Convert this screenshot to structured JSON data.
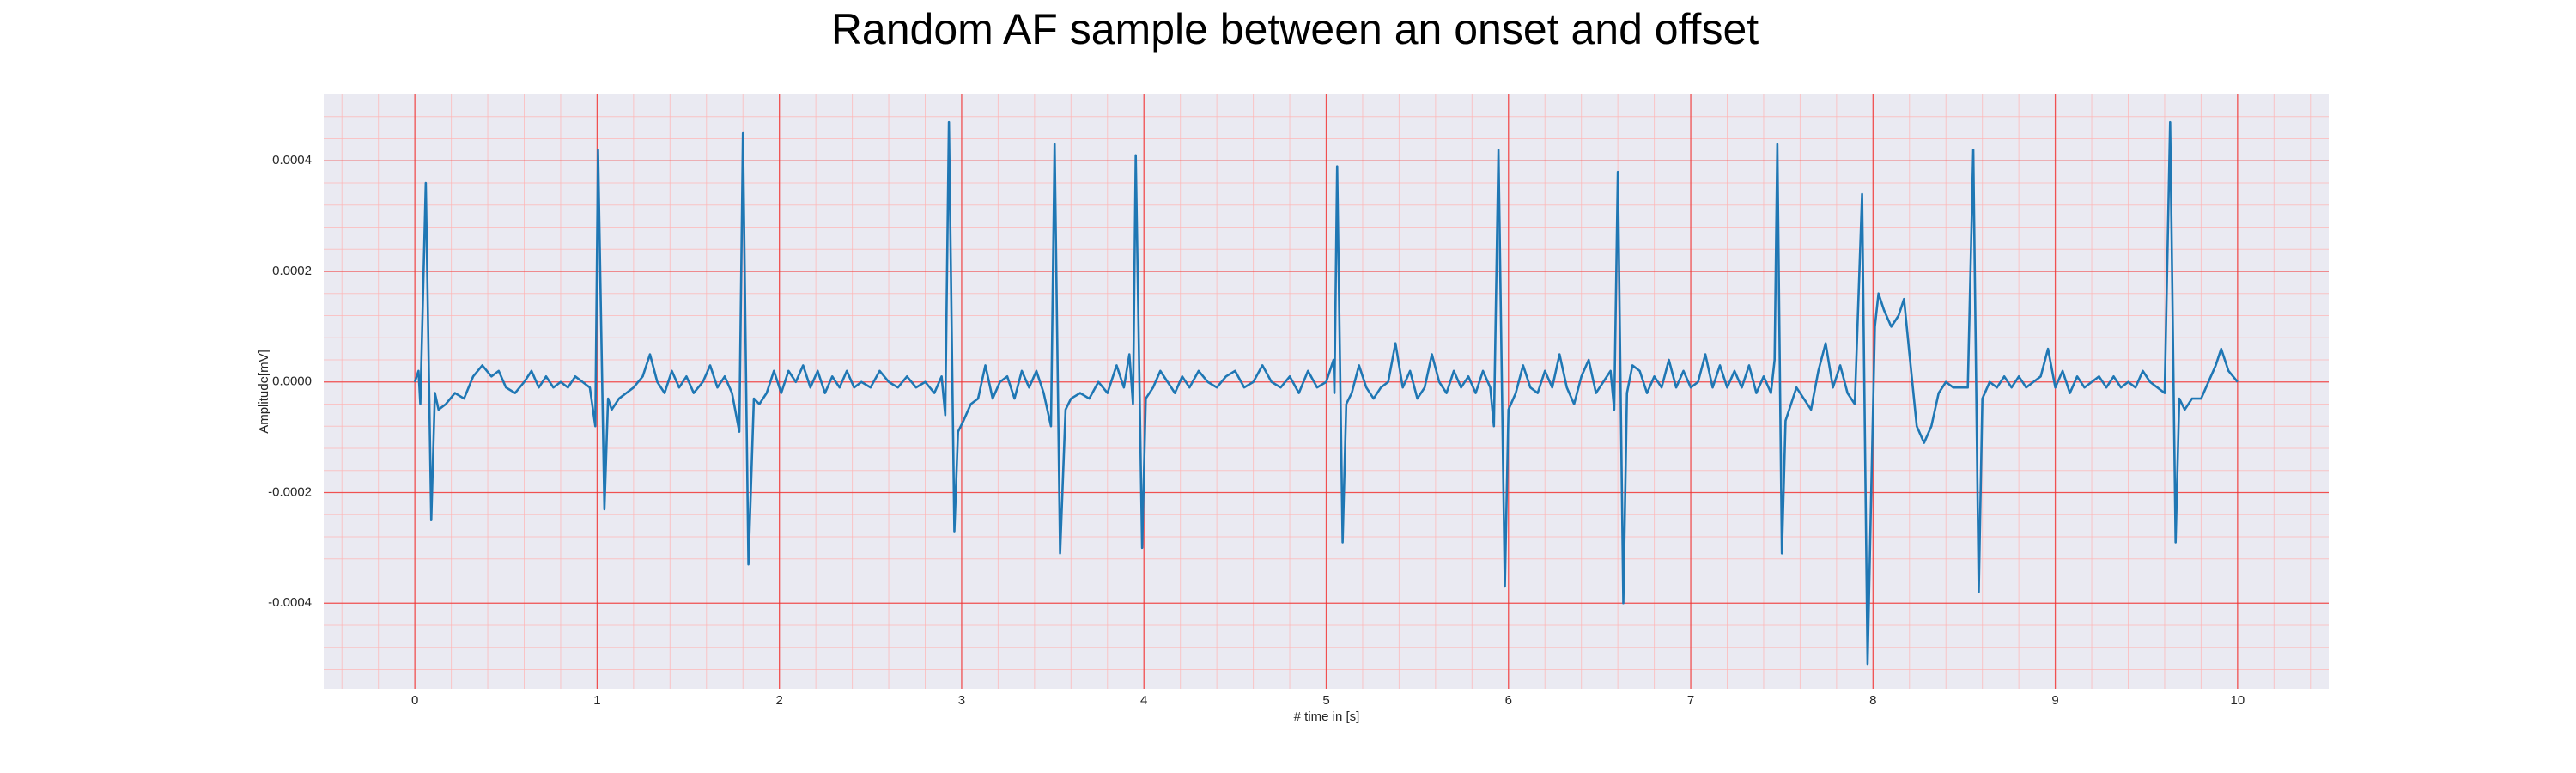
{
  "chart_data": {
    "type": "line",
    "title": "Random AF sample between an onset and offset",
    "x_label": "# time in [s]",
    "y_label": "Amplitude[mV]",
    "color": "#1f77b4",
    "grid": true,
    "minor_grid": true,
    "xlim": [
      -0.5,
      10.5
    ],
    "xticks": [
      0,
      1,
      2,
      3,
      4,
      5,
      6,
      7,
      8,
      9,
      10
    ],
    "ylim": [
      -0.000555,
      0.00052
    ],
    "yticks": [
      -0.0004,
      -0.0002,
      {
        "value": 0,
        "label": "0.0000"
      },
      0.0002,
      0.0004
    ],
    "x": [
      0,
      0.02,
      0.03,
      0.06,
      0.09,
      0.11,
      0.13,
      0.17,
      0.22,
      0.27,
      0.32,
      0.37,
      0.42,
      0.46,
      0.5,
      0.55,
      0.6,
      0.64,
      0.68,
      0.72,
      0.76,
      0.8,
      0.84,
      0.88,
      0.92,
      0.96,
      0.99,
      1.005,
      1.04,
      1.06,
      1.08,
      1.12,
      1.16,
      1.2,
      1.25,
      1.29,
      1.33,
      1.37,
      1.41,
      1.45,
      1.49,
      1.53,
      1.58,
      1.62,
      1.66,
      1.7,
      1.74,
      1.78,
      1.8,
      1.83,
      1.86,
      1.89,
      1.93,
      1.97,
      2.01,
      2.05,
      2.09,
      2.13,
      2.17,
      2.21,
      2.25,
      2.29,
      2.33,
      2.37,
      2.41,
      2.45,
      2.5,
      2.55,
      2.6,
      2.65,
      2.7,
      2.75,
      2.8,
      2.85,
      2.89,
      2.91,
      2.93,
      2.96,
      2.98,
      3.01,
      3.05,
      3.09,
      3.13,
      3.17,
      3.21,
      3.25,
      3.29,
      3.33,
      3.37,
      3.41,
      3.45,
      3.49,
      3.51,
      3.54,
      3.57,
      3.6,
      3.65,
      3.7,
      3.75,
      3.8,
      3.85,
      3.89,
      3.92,
      3.94,
      3.955,
      3.99,
      4.01,
      4.05,
      4.09,
      4.13,
      4.17,
      4.21,
      4.25,
      4.3,
      4.35,
      4.4,
      4.45,
      4.5,
      4.55,
      4.6,
      4.65,
      4.7,
      4.75,
      4.8,
      4.85,
      4.9,
      4.95,
      5,
      5.04,
      5.045,
      5.06,
      5.09,
      5.11,
      5.14,
      5.18,
      5.22,
      5.26,
      5.3,
      5.34,
      5.38,
      5.42,
      5.46,
      5.5,
      5.54,
      5.58,
      5.62,
      5.66,
      5.7,
      5.74,
      5.78,
      5.82,
      5.86,
      5.9,
      5.92,
      5.945,
      5.98,
      6,
      6.04,
      6.08,
      6.12,
      6.16,
      6.2,
      6.24,
      6.28,
      6.32,
      6.36,
      6.4,
      6.44,
      6.48,
      6.52,
      6.56,
      6.58,
      6.6,
      6.63,
      6.65,
      6.68,
      6.72,
      6.76,
      6.8,
      6.84,
      6.88,
      6.92,
      6.96,
      7,
      7.04,
      7.08,
      7.12,
      7.16,
      7.2,
      7.24,
      7.28,
      7.32,
      7.36,
      7.4,
      7.44,
      7.46,
      7.475,
      7.5,
      7.52,
      7.55,
      7.58,
      7.62,
      7.66,
      7.7,
      7.74,
      7.78,
      7.82,
      7.86,
      7.9,
      7.94,
      7.97,
      7.99,
      8.01,
      8.03,
      8.06,
      8.1,
      8.14,
      8.17,
      8.2,
      8.24,
      8.28,
      8.32,
      8.36,
      8.4,
      8.44,
      8.48,
      8.52,
      8.55,
      8.58,
      8.6,
      8.64,
      8.68,
      8.72,
      8.76,
      8.8,
      8.84,
      8.88,
      8.92,
      8.96,
      9,
      9.04,
      9.08,
      9.12,
      9.16,
      9.2,
      9.24,
      9.28,
      9.32,
      9.36,
      9.4,
      9.44,
      9.48,
      9.52,
      9.56,
      9.6,
      9.63,
      9.66,
      9.68,
      9.71,
      9.75,
      9.8,
      9.84,
      9.88,
      9.91,
      9.95,
      10
    ],
    "values": [
      0,
      2e-05,
      -4e-05,
      0.00036,
      -0.00025,
      -2e-05,
      -5e-05,
      -4e-05,
      -2e-05,
      -3e-05,
      1e-05,
      3e-05,
      1e-05,
      2e-05,
      -1e-05,
      -2e-05,
      0,
      2e-05,
      -1e-05,
      1e-05,
      -1e-05,
      0,
      -1e-05,
      1e-05,
      0,
      -1e-05,
      -8e-05,
      0.00042,
      -0.00023,
      -3e-05,
      -5e-05,
      -3e-05,
      -2e-05,
      -1e-05,
      1e-05,
      5e-05,
      0,
      -2e-05,
      2e-05,
      -1e-05,
      1e-05,
      -2e-05,
      0,
      3e-05,
      -1e-05,
      1e-05,
      -2e-05,
      -9e-05,
      0.00045,
      -0.00033,
      -3e-05,
      -4e-05,
      -2e-05,
      2e-05,
      -2e-05,
      2e-05,
      0,
      3e-05,
      -1e-05,
      2e-05,
      -2e-05,
      1e-05,
      -1e-05,
      2e-05,
      -1e-05,
      0,
      -1e-05,
      2e-05,
      0,
      -1e-05,
      1e-05,
      -1e-05,
      0,
      -2e-05,
      1e-05,
      -6e-05,
      0.00047,
      -0.00027,
      -9e-05,
      -7e-05,
      -4e-05,
      -3e-05,
      3e-05,
      -3e-05,
      0,
      1e-05,
      -3e-05,
      2e-05,
      -1e-05,
      2e-05,
      -2e-05,
      -8e-05,
      0.00043,
      -0.00031,
      -5e-05,
      -3e-05,
      -2e-05,
      -3e-05,
      0,
      -2e-05,
      3e-05,
      -1e-05,
      5e-05,
      -4e-05,
      0.00041,
      -0.0003,
      -3e-05,
      -1e-05,
      2e-05,
      0,
      -2e-05,
      1e-05,
      -1e-05,
      2e-05,
      0,
      -1e-05,
      1e-05,
      2e-05,
      -1e-05,
      0,
      3e-05,
      0,
      -1e-05,
      1e-05,
      -2e-05,
      2e-05,
      -1e-05,
      0,
      4e-05,
      -2e-05,
      0.00039,
      -0.00029,
      -4e-05,
      -2e-05,
      3e-05,
      -1e-05,
      -3e-05,
      -1e-05,
      0,
      7e-05,
      -1e-05,
      2e-05,
      -3e-05,
      -1e-05,
      5e-05,
      0,
      -2e-05,
      2e-05,
      -1e-05,
      1e-05,
      -2e-05,
      2e-05,
      -1e-05,
      -8e-05,
      0.00042,
      -0.00037,
      -5e-05,
      -2e-05,
      3e-05,
      -1e-05,
      -2e-05,
      2e-05,
      -1e-05,
      5e-05,
      -1e-05,
      -4e-05,
      1e-05,
      4e-05,
      -2e-05,
      0,
      2e-05,
      -5e-05,
      0.00038,
      -0.0004,
      -2e-05,
      3e-05,
      2e-05,
      -2e-05,
      1e-05,
      -1e-05,
      4e-05,
      -1e-05,
      2e-05,
      -1e-05,
      0,
      5e-05,
      -1e-05,
      3e-05,
      -1e-05,
      2e-05,
      -1e-05,
      3e-05,
      -2e-05,
      1e-05,
      -2e-05,
      4e-05,
      0.00043,
      -0.00031,
      -7e-05,
      -4e-05,
      -1e-05,
      -3e-05,
      -5e-05,
      2e-05,
      7e-05,
      -1e-05,
      3e-05,
      -2e-05,
      -4e-05,
      0.00034,
      -0.00051,
      -0.0002,
      0.0001,
      0.00016,
      0.00013,
      0.0001,
      0.00012,
      0.00015,
      5e-05,
      -8e-05,
      -0.00011,
      -8e-05,
      -2e-05,
      0,
      -1e-05,
      -1e-05,
      -1e-05,
      0.00042,
      -0.00038,
      -3e-05,
      0,
      -1e-05,
      1e-05,
      -1e-05,
      1e-05,
      -1e-05,
      0,
      1e-05,
      6e-05,
      -1e-05,
      2e-05,
      -2e-05,
      1e-05,
      -1e-05,
      0,
      1e-05,
      -1e-05,
      1e-05,
      -1e-05,
      0,
      -1e-05,
      2e-05,
      0,
      -1e-05,
      -2e-05,
      0.00047,
      -0.00029,
      -3e-05,
      -5e-05,
      -3e-05,
      -3e-05,
      0,
      3e-05,
      6e-05,
      2e-05,
      0
    ]
  }
}
